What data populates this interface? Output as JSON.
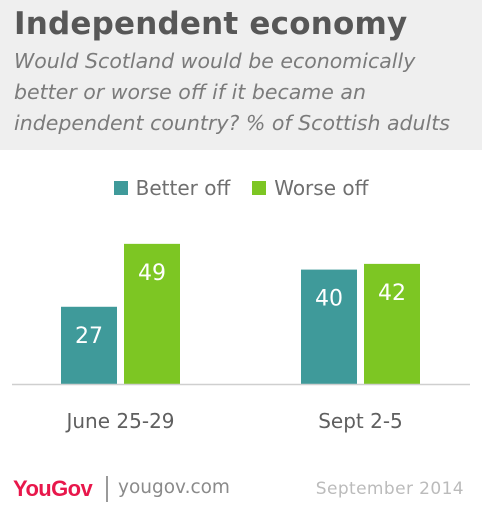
{
  "header": {
    "title": "Independent economy",
    "subtitle": "Would Scotland would be economically better or worse off if it became an independent country? % of Scottish adults"
  },
  "footer": {
    "logo": "YouGov",
    "site": "yougov.com",
    "date": "September 2014"
  },
  "colors": {
    "better": "#3f9a9a",
    "worse": "#7dc623",
    "axis": "#cfcfcf"
  },
  "chart_data": {
    "type": "bar",
    "title": "Independent economy",
    "subtitle": "Would Scotland would be economically better or worse off if it became an independent country? % of Scottish adults",
    "categories": [
      "June 25-29",
      "Sept 2-5"
    ],
    "series": [
      {
        "name": "Better off",
        "values": [
          27,
          40
        ]
      },
      {
        "name": "Worse off",
        "values": [
          49,
          42
        ]
      }
    ],
    "legend_position": "top-center",
    "data_labels": "inside-bar",
    "grid": false
  }
}
